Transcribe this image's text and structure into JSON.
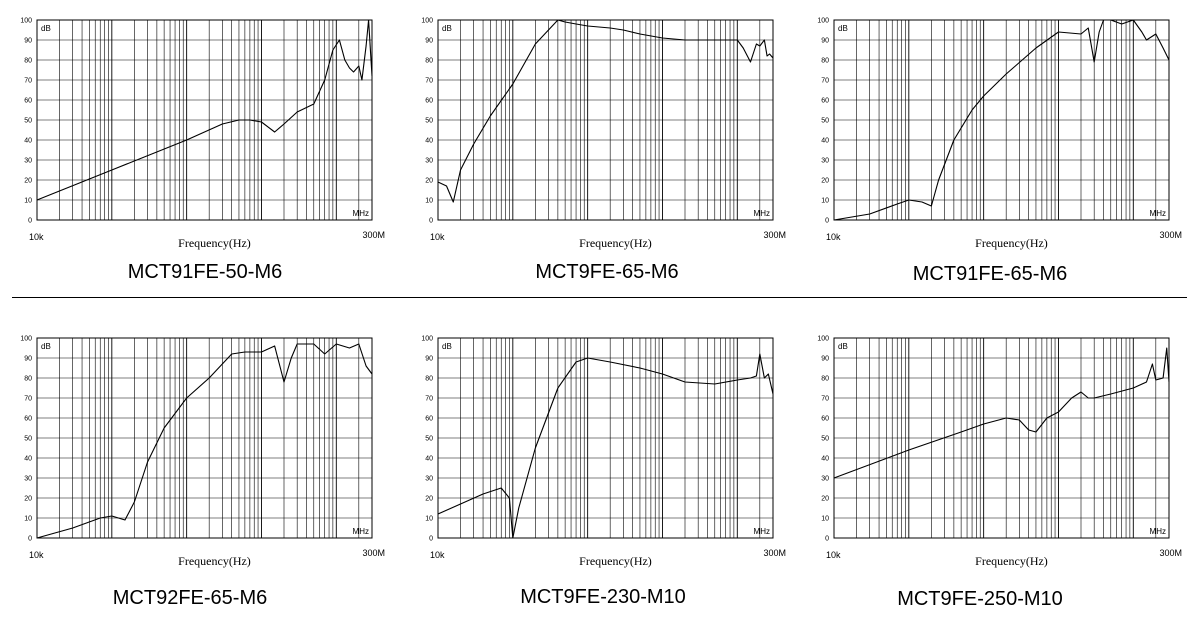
{
  "chart_data": [
    {
      "type": "line",
      "title": "MCT91FE-50-M6",
      "xlabel": "Frequency(Hz)",
      "x_start_label": "10k",
      "x_end_label": "300M",
      "x_unit": "MHz",
      "ylabel": "dB",
      "ylim": [
        0,
        100
      ],
      "yticks": [
        "0",
        "10",
        "20",
        "30",
        "40",
        "50",
        "60",
        "70",
        "80",
        "90",
        "100"
      ],
      "xscale": "log",
      "grid": true,
      "series": [
        {
          "x": [
            0.01,
            0.1,
            1,
            3,
            5,
            7,
            10,
            15,
            20,
            30,
            50,
            70,
            90,
            110,
            130,
            150,
            170,
            200,
            220,
            250,
            270,
            300
          ],
          "y": [
            10,
            25,
            40,
            48,
            50,
            50,
            49,
            44,
            48,
            54,
            58,
            70,
            85,
            90,
            80,
            76,
            74,
            77,
            70,
            87,
            100,
            72
          ]
        }
      ]
    },
    {
      "type": "line",
      "title": "MCT9FE-65-M6",
      "xlabel": "Frequency(Hz)",
      "x_start_label": "10k",
      "x_end_label": "300M",
      "x_unit": "MHz",
      "ylabel": "dB",
      "ylim": [
        0,
        100
      ],
      "yticks": [
        "0",
        "10",
        "20",
        "30",
        "40",
        "50",
        "60",
        "70",
        "80",
        "90",
        "100"
      ],
      "xscale": "log",
      "grid": true,
      "series": [
        {
          "x": [
            0.01,
            0.013,
            0.016,
            0.02,
            0.03,
            0.05,
            0.1,
            0.2,
            0.4,
            0.5,
            0.7,
            1,
            2,
            3,
            5,
            10,
            20,
            50,
            100,
            120,
            150,
            180,
            200,
            230,
            250,
            270,
            300
          ],
          "y": [
            19,
            17,
            9,
            25,
            38,
            52,
            68,
            88,
            100,
            99,
            98,
            97,
            96,
            95,
            93,
            91,
            90,
            90,
            90,
            86,
            79,
            88,
            87,
            90,
            82,
            83,
            81
          ]
        }
      ]
    },
    {
      "type": "line",
      "title": "MCT91FE-65-M6",
      "xlabel": "Frequency(Hz)",
      "x_start_label": "10k",
      "x_end_label": "300M",
      "x_unit": "MHz",
      "ylabel": "dB",
      "ylim": [
        0,
        100
      ],
      "yticks": [
        "0",
        "10",
        "20",
        "30",
        "40",
        "50",
        "60",
        "70",
        "80",
        "90",
        "100"
      ],
      "xscale": "log",
      "grid": true,
      "series": [
        {
          "x": [
            0.01,
            0.03,
            0.07,
            0.1,
            0.15,
            0.2,
            0.25,
            0.4,
            0.7,
            1,
            2,
            5,
            10,
            20,
            25,
            30,
            35,
            40,
            50,
            70,
            100,
            130,
            150,
            200,
            250,
            300
          ],
          "y": [
            0,
            3,
            8,
            10,
            9,
            7,
            20,
            40,
            55,
            62,
            73,
            86,
            94,
            93,
            96,
            79,
            94,
            100,
            100,
            98,
            100,
            94,
            90,
            93,
            86,
            80
          ]
        }
      ]
    },
    {
      "type": "line",
      "title": "MCT92FE-65-M6",
      "xlabel": "Frequency(Hz)",
      "x_start_label": "10k",
      "x_end_label": "300M",
      "x_unit": "MHz",
      "ylabel": "dB",
      "ylim": [
        0,
        100
      ],
      "yticks": [
        "0",
        "10",
        "20",
        "30",
        "40",
        "50",
        "60",
        "70",
        "80",
        "90",
        "100"
      ],
      "xscale": "log",
      "grid": true,
      "series": [
        {
          "x": [
            0.01,
            0.03,
            0.07,
            0.1,
            0.15,
            0.2,
            0.3,
            0.5,
            1,
            2,
            4,
            6,
            10,
            15,
            20,
            25,
            30,
            50,
            70,
            100,
            150,
            200,
            250,
            300
          ],
          "y": [
            0,
            5,
            10,
            11,
            9,
            18,
            38,
            55,
            70,
            80,
            92,
            93,
            93,
            96,
            78,
            90,
            97,
            97,
            92,
            97,
            95,
            97,
            86,
            82
          ]
        }
      ]
    },
    {
      "type": "line",
      "title": "MCT9FE-230-M10",
      "xlabel": "Frequency(Hz)",
      "x_start_label": "10k",
      "x_end_label": "300M",
      "x_unit": "MHz",
      "ylabel": "dB",
      "ylim": [
        0,
        100
      ],
      "yticks": [
        "0",
        "10",
        "20",
        "30",
        "40",
        "50",
        "60",
        "70",
        "80",
        "90",
        "100"
      ],
      "xscale": "log",
      "grid": true,
      "series": [
        {
          "x": [
            0.01,
            0.02,
            0.04,
            0.07,
            0.09,
            0.1,
            0.12,
            0.2,
            0.4,
            0.7,
            1,
            2,
            5,
            10,
            20,
            50,
            100,
            150,
            180,
            200,
            230,
            260,
            300
          ],
          "y": [
            12,
            17,
            22,
            25,
            20,
            0,
            15,
            45,
            75,
            88,
            90,
            88,
            85,
            82,
            78,
            77,
            79,
            80,
            81,
            92,
            80,
            82,
            72
          ]
        }
      ]
    },
    {
      "type": "line",
      "title": "MCT9FE-250-M10",
      "xlabel": "Frequency(Hz)",
      "x_start_label": "10k",
      "x_end_label": "300M",
      "x_unit": "MHz",
      "ylabel": "dB",
      "ylim": [
        0,
        100
      ],
      "yticks": [
        "0",
        "10",
        "20",
        "30",
        "40",
        "50",
        "60",
        "70",
        "80",
        "90",
        "100"
      ],
      "xscale": "log",
      "grid": true,
      "series": [
        {
          "x": [
            0.01,
            0.1,
            0.5,
            1,
            2,
            3,
            4,
            5,
            7,
            10,
            15,
            20,
            25,
            30,
            50,
            100,
            150,
            180,
            200,
            250,
            280,
            300
          ],
          "y": [
            30,
            44,
            53,
            57,
            60,
            59,
            54,
            53,
            60,
            63,
            70,
            73,
            70,
            70,
            72,
            75,
            78,
            87,
            79,
            80,
            95,
            78
          ]
        }
      ]
    }
  ]
}
